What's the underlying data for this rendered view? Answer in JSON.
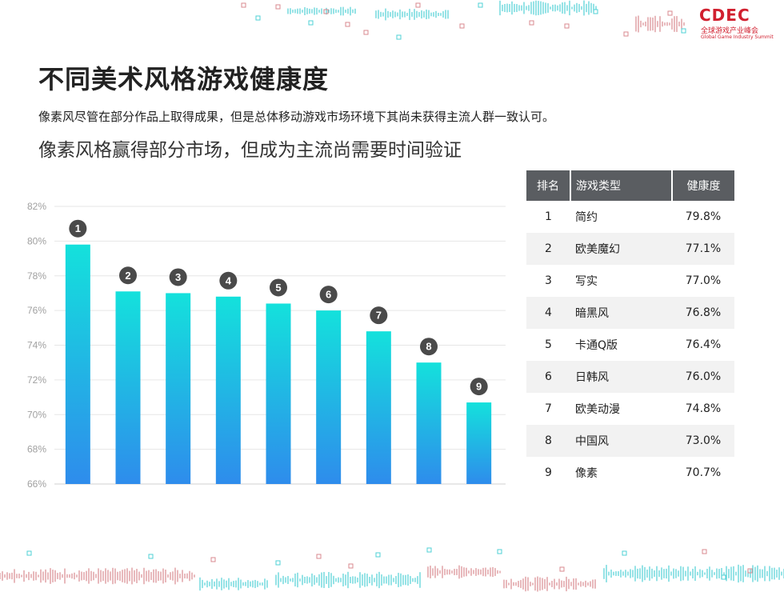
{
  "logo": {
    "mark": "CDEC",
    "cn": "全球游戏产业峰会",
    "en": "Global Game Industry Summit"
  },
  "title": "不同美术风格游戏健康度",
  "description": "像素风尽管在部分作品上取得成果，但是总体移动游戏市场环境下其尚未获得主流人群一致认可。",
  "subtitle": "像素风格赢得部分市场，但成为主流尚需要时间验证",
  "colors": {
    "bar_top": "#14e1dc",
    "bar_bottom": "#2e8cec",
    "badge": "#4a4a4a",
    "accent": "#d1202f",
    "header_bg": "#5a5d61"
  },
  "chart_data": {
    "type": "bar",
    "categories": [
      "1",
      "2",
      "3",
      "4",
      "5",
      "6",
      "7",
      "8",
      "9"
    ],
    "values": [
      79.8,
      77.1,
      77.0,
      76.8,
      76.4,
      76.0,
      74.8,
      73.0,
      70.7
    ],
    "ylim": [
      66,
      82
    ],
    "yticks": [
      "66%",
      "68%",
      "70%",
      "72%",
      "74%",
      "76%",
      "78%",
      "80%",
      "82%"
    ],
    "grid": true
  },
  "table": {
    "headers": [
      "排名",
      "游戏类型",
      "健康度"
    ],
    "rows": [
      [
        "1",
        "简约",
        "79.8%"
      ],
      [
        "2",
        "欧美魔幻",
        "77.1%"
      ],
      [
        "3",
        "写实",
        "77.0%"
      ],
      [
        "4",
        "暗黑风",
        "76.8%"
      ],
      [
        "5",
        "卡通Q版",
        "76.4%"
      ],
      [
        "6",
        "日韩风",
        "76.0%"
      ],
      [
        "7",
        "欧美动漫",
        "74.8%"
      ],
      [
        "8",
        "中国风",
        "73.0%"
      ],
      [
        "9",
        "像素",
        "70.7%"
      ]
    ]
  }
}
